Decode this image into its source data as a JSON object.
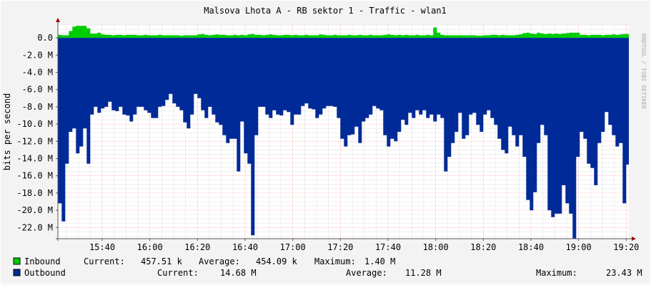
{
  "chart_data": {
    "type": "area",
    "title": "Malsova Lhota A - RB sektor 1 - Traffic - wlan1",
    "ylabel": "bits per second",
    "xlabel": "",
    "watermark": "RRDTOOL / TOBI OETIKER",
    "ylim": [
      -23.3,
      1.5
    ],
    "y_unit": "M",
    "yticks": [
      "0.0",
      "-2.0 M",
      "-4.0 M",
      "-6.0 M",
      "-8.0 M",
      "-10.0 M",
      "-12.0 M",
      "-14.0 M",
      "-16.0 M",
      "-18.0 M",
      "-20.0 M",
      "-22.0 M"
    ],
    "ytick_values": [
      0,
      -2,
      -4,
      -6,
      -8,
      -10,
      -12,
      -14,
      -16,
      -18,
      -20,
      -22
    ],
    "xticks": [
      "15:40",
      "16:00",
      "16:20",
      "16:40",
      "17:00",
      "17:20",
      "17:40",
      "18:00",
      "18:20",
      "18:40",
      "19:00",
      "19:20"
    ],
    "x_start": "15:21:30",
    "x_step_seconds": 90,
    "grid": true,
    "series": [
      {
        "name": "Inbound",
        "color": "#00cc00",
        "values": [
          0.35,
          0.3,
          0.3,
          0.8,
          1.3,
          1.4,
          1.4,
          1.4,
          1.1,
          0.5,
          0.5,
          0.6,
          0.4,
          0.35,
          0.35,
          0.3,
          0.35,
          0.35,
          0.3,
          0.35,
          0.35,
          0.35,
          0.3,
          0.3,
          0.35,
          0.3,
          0.3,
          0.3,
          0.35,
          0.3,
          0.3,
          0.3,
          0.3,
          0.3,
          0.25,
          0.3,
          0.3,
          0.3,
          0.3,
          0.4,
          0.45,
          0.35,
          0.3,
          0.35,
          0.4,
          0.35,
          0.35,
          0.3,
          0.3,
          0.35,
          0.3,
          0.35,
          0.3,
          0.4,
          0.45,
          0.35,
          0.35,
          0.3,
          0.35,
          0.4,
          0.35,
          0.3,
          0.3,
          0.35,
          0.35,
          0.3,
          0.35,
          0.3,
          0.3,
          0.35,
          0.3,
          0.3,
          0.3,
          0.4,
          0.35,
          0.3,
          0.3,
          0.35,
          0.3,
          0.3,
          0.3,
          0.35,
          0.3,
          0.3,
          0.35,
          0.3,
          0.3,
          0.35,
          0.3,
          0.3,
          0.3,
          0.35,
          0.4,
          0.35,
          0.3,
          0.35,
          0.3,
          0.35,
          0.3,
          0.3,
          0.35,
          0.3,
          0.3,
          0.35,
          0.3,
          1.2,
          0.6,
          0.35,
          0.3,
          0.3,
          0.3,
          0.3,
          0.3,
          0.3,
          0.3,
          0.3,
          0.3,
          0.25,
          0.25,
          0.3,
          0.3,
          0.35,
          0.35,
          0.3,
          0.35,
          0.3,
          0.3,
          0.3,
          0.35,
          0.4,
          0.55,
          0.6,
          0.5,
          0.45,
          0.6,
          0.5,
          0.45,
          0.5,
          0.45,
          0.5,
          0.45,
          0.5,
          0.55,
          0.6,
          0.6,
          0.6,
          0.35,
          0.35,
          0.3,
          0.35,
          0.35,
          0.35,
          0.3,
          0.35,
          0.35,
          0.4,
          0.35,
          0.4,
          0.45,
          0.45
        ]
      },
      {
        "name": "Outbound",
        "color": "#002a97",
        "values": [
          -19.2,
          -21.3,
          -14.6,
          -10.9,
          -10.5,
          -13.4,
          -12.6,
          -10.5,
          -14.6,
          -8.9,
          -8.0,
          -8.7,
          -8.2,
          -8.0,
          -7.4,
          -8.4,
          -8.5,
          -8.0,
          -8.9,
          -9.0,
          -9.7,
          -8.9,
          -8.0,
          -8.0,
          -8.4,
          -8.7,
          -9.3,
          -9.3,
          -8.0,
          -7.9,
          -7.2,
          -6.5,
          -7.6,
          -8.0,
          -8.4,
          -9.8,
          -10.5,
          -8.9,
          -6.5,
          -7.0,
          -8.4,
          -9.3,
          -8.0,
          -8.9,
          -9.8,
          -10.1,
          -11.3,
          -12.2,
          -11.7,
          -11.7,
          -15.5,
          -9.7,
          -13.4,
          -14.6,
          -22.9,
          -11.3,
          -8.0,
          -8.0,
          -8.9,
          -9.3,
          -8.4,
          -8.9,
          -9.0,
          -8.4,
          -8.6,
          -10.1,
          -8.9,
          -8.9,
          -7.9,
          -7.6,
          -8.2,
          -8.3,
          -9.3,
          -8.9,
          -8.2,
          -7.9,
          -7.9,
          -8.0,
          -9.3,
          -11.7,
          -12.6,
          -11.3,
          -11.2,
          -10.3,
          -12.2,
          -9.7,
          -9.3,
          -8.9,
          -7.9,
          -8.2,
          -8.4,
          -11.3,
          -12.6,
          -11.7,
          -12.0,
          -10.9,
          -9.5,
          -10.1,
          -8.7,
          -9.3,
          -8.4,
          -8.9,
          -8.4,
          -9.3,
          -8.9,
          -9.7,
          -8.9,
          -9.3,
          -15.5,
          -13.8,
          -12.2,
          -10.9,
          -8.7,
          -11.7,
          -11.3,
          -8.9,
          -8.7,
          -10.1,
          -10.9,
          -8.9,
          -8.4,
          -9.3,
          -10.1,
          -11.7,
          -13.0,
          -13.4,
          -10.3,
          -11.3,
          -12.6,
          -11.3,
          -13.8,
          -18.8,
          -20.0,
          -17.9,
          -12.2,
          -10.1,
          -11.3,
          -20.0,
          -20.8,
          -20.4,
          -20.4,
          -17.1,
          -19.2,
          -20.4,
          -23.3,
          -13.8,
          -10.9,
          -11.7,
          -14.6,
          -15.1,
          -17.1,
          -12.2,
          -10.9,
          -8.6,
          -10.1,
          -11.3,
          -12.6,
          -12.2,
          -19.2,
          -14.7
        ]
      }
    ]
  },
  "legend": {
    "inbound": {
      "label": "Inbound",
      "current_label": "Current:",
      "current": "457.51 k",
      "average_label": "Average:",
      "average": "454.09 k",
      "maximum_label": "Maximum:",
      "maximum": "1.40 M"
    },
    "outbound": {
      "label": "Outbound",
      "current_label": "Current:",
      "current": "14.68 M",
      "average_label": "Average:",
      "average": "11.28 M",
      "maximum_label": "Maximum:",
      "maximum": "23.43 M"
    }
  }
}
